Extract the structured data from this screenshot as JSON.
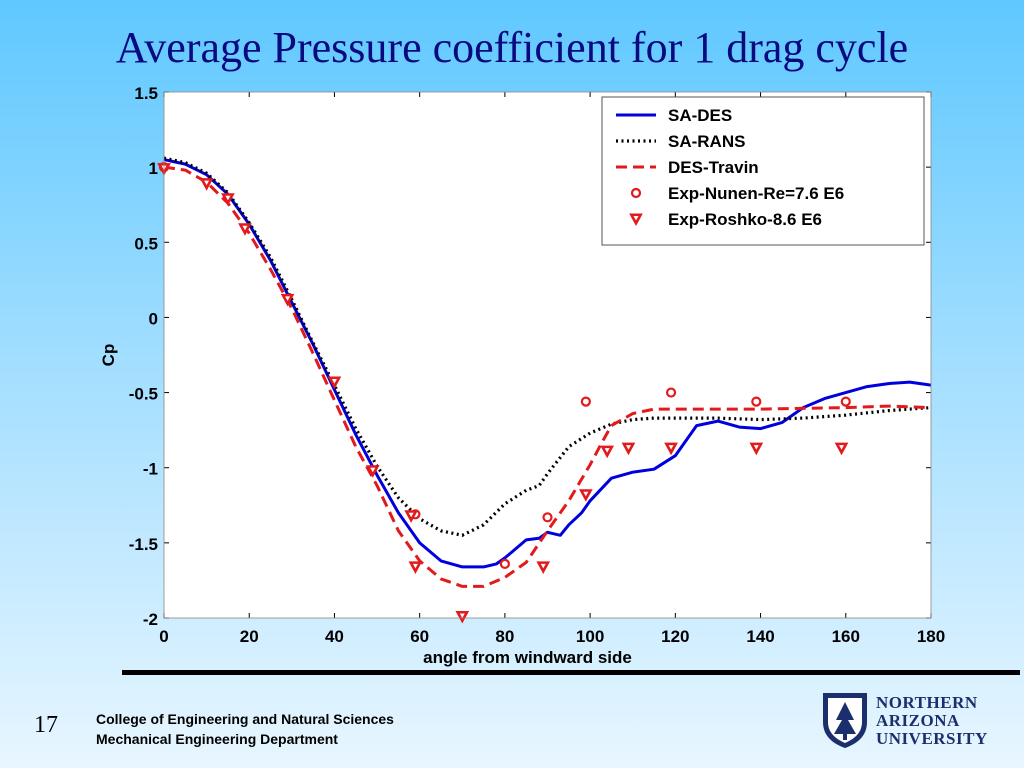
{
  "slide": {
    "title": "Average Pressure coefficient for 1 drag cycle",
    "page_number": "17",
    "footer_line1": "College of Engineering and Natural Sciences",
    "footer_line2": "Mechanical Engineering Department",
    "logo_text": [
      "NORTHERN",
      "ARIZONA",
      "UNIVERSITY"
    ],
    "logo_icon": "nau-shield-pine-icon"
  },
  "chart_data": {
    "type": "line",
    "title": "",
    "xlabel": "angle from windward side",
    "ylabel": "Cp",
    "xlim": [
      0,
      180
    ],
    "ylim": [
      -2,
      1.5
    ],
    "xticks": [
      0,
      20,
      40,
      60,
      80,
      100,
      120,
      140,
      160,
      180
    ],
    "yticks": [
      1.5,
      1,
      0.5,
      0,
      -0.5,
      -1,
      -1.5,
      -2
    ],
    "ytick_labels": [
      "1.5",
      "1",
      "0.5",
      "0",
      "-0.5",
      "-1",
      "-1.5",
      "-2"
    ],
    "grid": false,
    "legend_position": "top-right",
    "series": [
      {
        "name": "SA-DES",
        "style": "solid",
        "color": "#0000dd",
        "x": [
          0,
          5,
          10,
          15,
          20,
          25,
          30,
          35,
          40,
          45,
          50,
          55,
          60,
          65,
          70,
          75,
          78,
          80,
          85,
          88,
          90,
          93,
          95,
          98,
          100,
          105,
          110,
          115,
          120,
          125,
          130,
          135,
          140,
          145,
          150,
          155,
          160,
          165,
          170,
          175,
          180
        ],
        "y": [
          1.05,
          1.02,
          0.95,
          0.82,
          0.62,
          0.38,
          0.1,
          -0.18,
          -0.48,
          -0.78,
          -1.05,
          -1.3,
          -1.5,
          -1.62,
          -1.66,
          -1.66,
          -1.64,
          -1.6,
          -1.48,
          -1.47,
          -1.43,
          -1.45,
          -1.38,
          -1.3,
          -1.22,
          -1.07,
          -1.03,
          -1.01,
          -0.92,
          -0.72,
          -0.69,
          -0.73,
          -0.74,
          -0.7,
          -0.6,
          -0.54,
          -0.5,
          -0.46,
          -0.44,
          -0.43,
          -0.45
        ]
      },
      {
        "name": "SA-RANS",
        "style": "dotted",
        "color": "#000000",
        "x": [
          0,
          5,
          10,
          15,
          20,
          25,
          30,
          35,
          40,
          45,
          50,
          55,
          60,
          65,
          70,
          75,
          80,
          85,
          88,
          90,
          95,
          100,
          105,
          110,
          115,
          120,
          130,
          140,
          150,
          160,
          170,
          180
        ],
        "y": [
          1.06,
          1.03,
          0.96,
          0.83,
          0.63,
          0.4,
          0.12,
          -0.17,
          -0.45,
          -0.74,
          -0.99,
          -1.2,
          -1.34,
          -1.42,
          -1.45,
          -1.38,
          -1.24,
          -1.15,
          -1.12,
          -1.04,
          -0.86,
          -0.77,
          -0.71,
          -0.68,
          -0.67,
          -0.67,
          -0.67,
          -0.68,
          -0.67,
          -0.65,
          -0.62,
          -0.6
        ]
      },
      {
        "name": "DES-Travin",
        "style": "dashed",
        "color": "#e31a1c",
        "x": [
          0,
          5,
          10,
          15,
          20,
          25,
          30,
          35,
          40,
          45,
          50,
          55,
          60,
          65,
          70,
          75,
          80,
          85,
          90,
          95,
          100,
          103,
          105,
          110,
          115,
          120,
          140,
          160,
          170,
          180
        ],
        "y": [
          1.0,
          0.98,
          0.9,
          0.76,
          0.56,
          0.32,
          0.06,
          -0.24,
          -0.55,
          -0.86,
          -1.12,
          -1.42,
          -1.62,
          -1.74,
          -1.79,
          -1.79,
          -1.73,
          -1.63,
          -1.42,
          -1.22,
          -0.98,
          -0.82,
          -0.72,
          -0.64,
          -0.61,
          -0.61,
          -0.61,
          -0.6,
          -0.59,
          -0.6
        ]
      }
    ],
    "markers": [
      {
        "name": "Exp-Nunen-Re=7.6 E6",
        "shape": "circle",
        "color": "#e31a1c",
        "x": [
          0,
          59,
          80,
          90,
          99,
          119,
          139,
          160
        ],
        "y": [
          1.0,
          -1.31,
          -1.64,
          -1.33,
          -0.56,
          -0.5,
          -0.56,
          -0.56
        ]
      },
      {
        "name": "Exp-Roshko-8.6 E6",
        "shape": "triangle-down",
        "color": "#e31a1c",
        "x": [
          0,
          10,
          15,
          19,
          29,
          40,
          49,
          58,
          59,
          70,
          89,
          99,
          104,
          109,
          119,
          139,
          159
        ],
        "y": [
          0.99,
          0.89,
          0.79,
          0.59,
          0.12,
          -0.43,
          -1.02,
          -1.32,
          -1.66,
          -1.99,
          -1.66,
          -1.18,
          -0.89,
          -0.87,
          -0.87,
          -0.87,
          -0.87
        ]
      }
    ]
  }
}
